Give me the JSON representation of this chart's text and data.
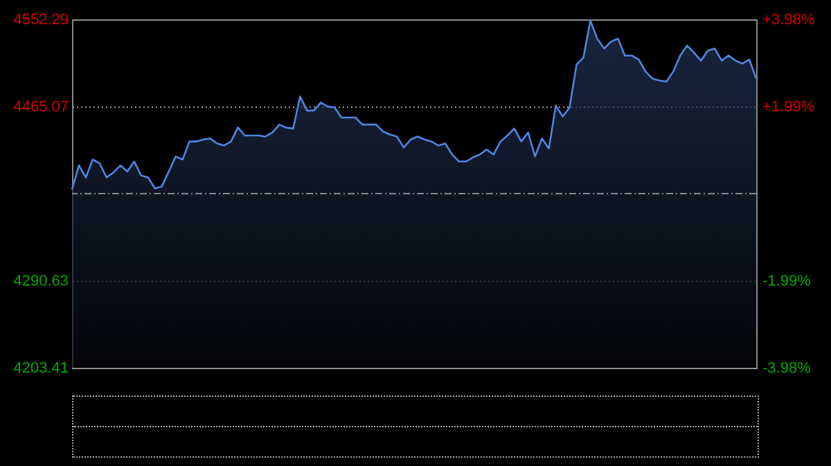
{
  "chart_data": {
    "type": "area",
    "categories": [
      null,
      null,
      null,
      null,
      null,
      null,
      null,
      null,
      null,
      null,
      null,
      null,
      null,
      null,
      null,
      null,
      null,
      null,
      null,
      null,
      null,
      null,
      null,
      null,
      null,
      null,
      null,
      null,
      null,
      null,
      null,
      null,
      null,
      null,
      null,
      null,
      null,
      null,
      null,
      null,
      null,
      null,
      null,
      null,
      null,
      null,
      null,
      null,
      null,
      null,
      null,
      null,
      null,
      null,
      null,
      null,
      null,
      null,
      null,
      null,
      null,
      null,
      null,
      null,
      null,
      null,
      null,
      null,
      null,
      null,
      null,
      null,
      null,
      null,
      null,
      null,
      null,
      null,
      null,
      null,
      null,
      null,
      null,
      null,
      null,
      null,
      null,
      null,
      null,
      null,
      null,
      null,
      null,
      null,
      null,
      null,
      null,
      null,
      null,
      null
    ],
    "color": "#4f86e0",
    "values": [
      4382,
      4406,
      4394,
      4412,
      4408,
      4394,
      4399,
      4406,
      4400,
      4410,
      4396,
      4394,
      4383,
      4385,
      4400,
      4415,
      4412,
      4430,
      4430,
      4432,
      4433,
      4428,
      4426,
      4430,
      4444,
      4436,
      4436,
      4436,
      4435,
      4439,
      4447,
      4444,
      4443,
      4475,
      4461,
      4461,
      4469,
      4465,
      4464,
      4454,
      4454,
      4454,
      4447,
      4447,
      4447,
      4440,
      4437,
      4435,
      4424,
      4432,
      4435,
      4432,
      4430,
      4426,
      4428,
      4417,
      4410,
      4410,
      4414,
      4417,
      4422,
      4417,
      4430,
      4436,
      4443,
      4430,
      4439,
      4415,
      4433,
      4423,
      4466,
      4455,
      4464,
      4507,
      4514,
      4551,
      4533,
      4523,
      4530,
      4533,
      4516,
      4516,
      4512,
      4500,
      4493,
      4491,
      4490,
      4500,
      4516,
      4526,
      4519,
      4511,
      4521,
      4523,
      4511,
      4516,
      4511,
      4508,
      4512,
      4493
    ],
    "ylim": [
      4203.41,
      4552.29
    ],
    "yticks": [
      4203.41,
      4290.63,
      4465.07,
      4552.29
    ],
    "y2lim": [
      -3.98,
      3.98
    ],
    "y2ticks": [
      {
        "value": -3.98,
        "label": "-3.98%"
      },
      {
        "value": -1.99,
        "label": "-1.99%"
      },
      {
        "value": 1.99,
        "label": "+1.99%"
      },
      {
        "value": 3.98,
        "label": "+3.98%"
      }
    ],
    "ref_lines": [
      {
        "axis": "y2",
        "value": 0,
        "line_style": "dashed",
        "color": "#8a8a8a"
      }
    ],
    "grid": "y",
    "tick_labels": "y"
  }
}
